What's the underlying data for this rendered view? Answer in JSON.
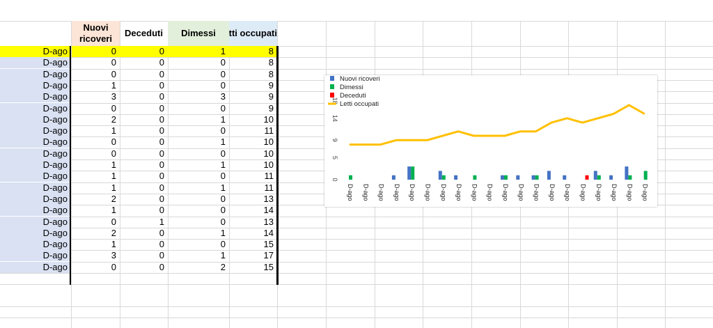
{
  "table": {
    "headers": {
      "nuovi_line1": "Nuovi",
      "nuovi_line2": "ricoveri",
      "deceduti": "Deceduti",
      "dimessi": "Dimessi",
      "letti": "etti occupati"
    },
    "rows": [
      {
        "date": "D-ago",
        "nuovi": "0",
        "deceduti": "0",
        "dimessi": "1",
        "letti": "8"
      },
      {
        "date": "D-ago",
        "nuovi": "0",
        "deceduti": "0",
        "dimessi": "0",
        "letti": "8"
      },
      {
        "date": "D-ago",
        "nuovi": "0",
        "deceduti": "0",
        "dimessi": "0",
        "letti": "8"
      },
      {
        "date": "D-ago",
        "nuovi": "1",
        "deceduti": "0",
        "dimessi": "0",
        "letti": "9"
      },
      {
        "date": "D-ago",
        "nuovi": "3",
        "deceduti": "0",
        "dimessi": "3",
        "letti": "9"
      },
      {
        "date": "D-ago",
        "nuovi": "0",
        "deceduti": "0",
        "dimessi": "0",
        "letti": "9"
      },
      {
        "date": "D-ago",
        "nuovi": "2",
        "deceduti": "0",
        "dimessi": "1",
        "letti": "10"
      },
      {
        "date": "D-ago",
        "nuovi": "1",
        "deceduti": "0",
        "dimessi": "0",
        "letti": "11"
      },
      {
        "date": "D-ago",
        "nuovi": "0",
        "deceduti": "0",
        "dimessi": "1",
        "letti": "10"
      },
      {
        "date": "D-ago",
        "nuovi": "0",
        "deceduti": "0",
        "dimessi": "0",
        "letti": "10"
      },
      {
        "date": "D-ago",
        "nuovi": "1",
        "deceduti": "0",
        "dimessi": "1",
        "letti": "10"
      },
      {
        "date": "D-ago",
        "nuovi": "1",
        "deceduti": "0",
        "dimessi": "0",
        "letti": "11"
      },
      {
        "date": "D-ago",
        "nuovi": "1",
        "deceduti": "0",
        "dimessi": "1",
        "letti": "11"
      },
      {
        "date": "D-ago",
        "nuovi": "2",
        "deceduti": "0",
        "dimessi": "0",
        "letti": "13"
      },
      {
        "date": "D-ago",
        "nuovi": "1",
        "deceduti": "0",
        "dimessi": "0",
        "letti": "14"
      },
      {
        "date": "D-ago",
        "nuovi": "0",
        "deceduti": "1",
        "dimessi": "0",
        "letti": "13"
      },
      {
        "date": "D-ago",
        "nuovi": "2",
        "deceduti": "0",
        "dimessi": "1",
        "letti": "14"
      },
      {
        "date": "D-ago",
        "nuovi": "1",
        "deceduti": "0",
        "dimessi": "0",
        "letti": "15"
      },
      {
        "date": "D-ago",
        "nuovi": "3",
        "deceduti": "0",
        "dimessi": "1",
        "letti": "17"
      },
      {
        "date": "D-ago",
        "nuovi": "0",
        "deceduti": "0",
        "dimessi": "2",
        "letti": "15"
      }
    ]
  },
  "colors": {
    "nuovi_header": "#fce4d6",
    "dimessi_header": "#e2efda",
    "letti_header": "#ddebf7",
    "highlight": "#ffff00",
    "date_fill": "#d9e1f2",
    "nuovi": "#4472c4",
    "dimessi": "#00b050",
    "deceduti": "#ff0000",
    "letti": "#ffc000"
  },
  "chart_data": {
    "type": "bar",
    "categories": [
      "D-ago",
      "D-ago",
      "D-ago",
      "D-ago",
      "D-ago",
      "D-ago",
      "D-ago",
      "D-ago",
      "D-ago",
      "D-ago",
      "D-ago",
      "D-ago",
      "D-ago",
      "D-ago",
      "D-ago",
      "D-ago",
      "D-ago",
      "D-ago",
      "D-ago",
      "D-ago"
    ],
    "y_ticks": [
      "0",
      "5",
      "9",
      "14",
      "18"
    ],
    "ylim": [
      0,
      18
    ],
    "legend_position": "top-left",
    "series": [
      {
        "name": "Nuovi ricoveri",
        "type": "bar",
        "values": [
          0,
          0,
          0,
          1,
          3,
          0,
          2,
          1,
          0,
          0,
          1,
          1,
          1,
          2,
          1,
          0,
          2,
          1,
          3,
          0
        ]
      },
      {
        "name": "Dimessi",
        "type": "bar",
        "values": [
          1,
          0,
          0,
          0,
          3,
          0,
          1,
          0,
          1,
          0,
          1,
          0,
          1,
          0,
          0,
          0,
          1,
          0,
          1,
          2
        ]
      },
      {
        "name": "Deceduti",
        "type": "bar",
        "values": [
          0,
          0,
          0,
          0,
          0,
          0,
          0,
          0,
          0,
          0,
          0,
          0,
          0,
          0,
          0,
          1,
          0,
          0,
          0,
          0
        ]
      },
      {
        "name": "Letti occupati",
        "type": "line",
        "values": [
          8,
          8,
          8,
          9,
          9,
          9,
          10,
          11,
          10,
          10,
          10,
          11,
          11,
          13,
          14,
          13,
          14,
          15,
          17,
          15
        ]
      }
    ]
  }
}
